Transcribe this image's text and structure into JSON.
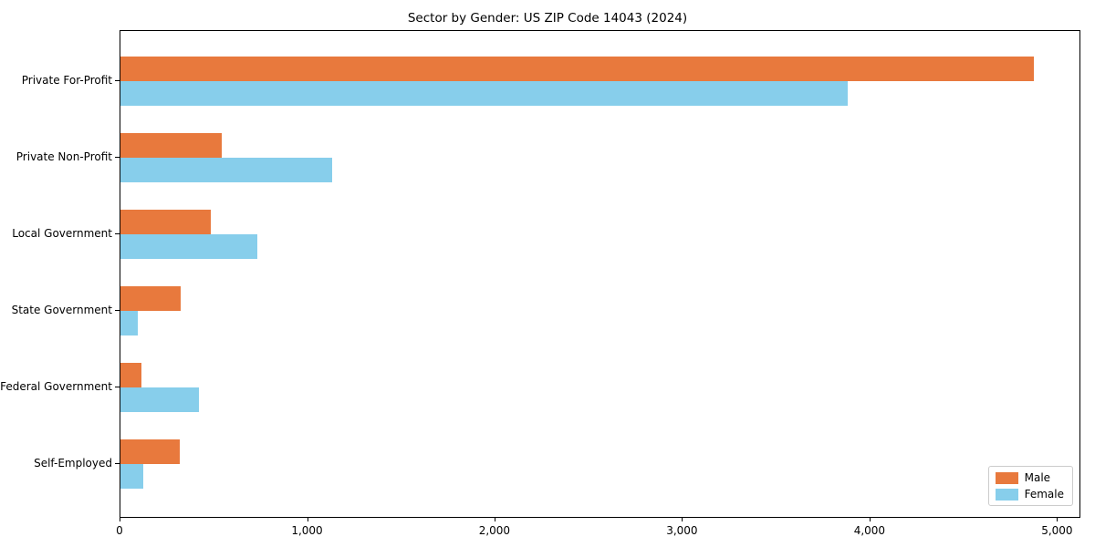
{
  "chart_data": {
    "type": "bar",
    "orientation": "horizontal",
    "title": "Sector by Gender: US ZIP Code 14043 (2024)",
    "categories": [
      "Private For-Profit",
      "Private Non-Profit",
      "Local Government",
      "State Government",
      "Federal Government",
      "Self-Employed"
    ],
    "series": [
      {
        "name": "Male",
        "color": "#E8793D",
        "values": [
          4870,
          540,
          480,
          320,
          110,
          315
        ]
      },
      {
        "name": "Female",
        "color": "#87CEEB",
        "values": [
          3880,
          1130,
          730,
          90,
          420,
          120
        ]
      }
    ],
    "xlabel": "",
    "ylabel": "",
    "xlim": [
      0,
      5115
    ],
    "x_ticks": [
      0,
      1000,
      2000,
      3000,
      4000,
      5000
    ],
    "x_tick_labels": [
      "0",
      "1,000",
      "2,000",
      "3,000",
      "4,000",
      "5,000"
    ],
    "grid": false,
    "legend_position": "lower right",
    "background_color": "#ffffff",
    "axis_color": "#000000"
  }
}
